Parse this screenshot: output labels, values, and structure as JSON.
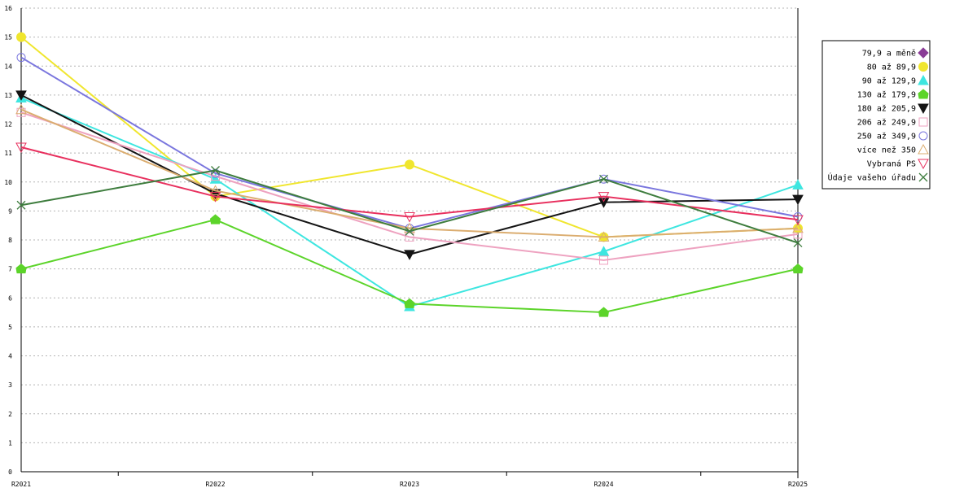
{
  "chart_data": {
    "type": "line",
    "categories": [
      "R2021",
      "R2022",
      "R2023",
      "R2024",
      "R2025"
    ],
    "ylim": [
      0,
      16
    ],
    "yticks": [
      0,
      1,
      2,
      3,
      4,
      5,
      6,
      7,
      8,
      9,
      10,
      11,
      12,
      13,
      14,
      15,
      16
    ],
    "grid": true,
    "legend_position": "right",
    "series": [
      {
        "name": "79,9 a měně",
        "color": "#8a3c96",
        "marker": "diamond-filled-icon",
        "values": [
          null,
          null,
          null,
          null,
          null
        ]
      },
      {
        "name": "80 až 89,9",
        "color": "#f0e62e",
        "marker": "circle-filled-icon",
        "values": [
          15.0,
          9.5,
          10.6,
          8.1,
          8.4
        ]
      },
      {
        "name": "90 až 129,9",
        "color": "#3ee6e0",
        "marker": "triangle-up-filled-icon",
        "values": [
          12.9,
          10.1,
          5.7,
          7.6,
          9.9
        ]
      },
      {
        "name": "130 až 179,9",
        "color": "#5cd42a",
        "marker": "pentagon-filled-icon",
        "values": [
          7.0,
          8.7,
          5.8,
          5.5,
          7.0
        ]
      },
      {
        "name": "180 až 205,9",
        "color": "#141414",
        "marker": "triangle-down-filled-icon",
        "values": [
          13.0,
          9.6,
          7.5,
          9.3,
          9.4
        ]
      },
      {
        "name": "206 až 249,9",
        "color": "#eea2c0",
        "marker": "square-open-icon",
        "values": [
          12.4,
          10.2,
          8.1,
          7.3,
          8.2
        ]
      },
      {
        "name": "250 až 349,9",
        "color": "#7a76de",
        "marker": "circle-open-icon",
        "values": [
          14.3,
          10.3,
          8.4,
          10.1,
          8.8
        ]
      },
      {
        "name": "více než 350",
        "color": "#dbad70",
        "marker": "triangle-up-open-icon",
        "values": [
          12.5,
          9.7,
          8.4,
          8.1,
          8.4
        ]
      },
      {
        "name": "Vybraná PS",
        "color": "#e8305e",
        "marker": "triangle-down-open-icon",
        "values": [
          11.2,
          9.5,
          8.8,
          9.5,
          8.7
        ]
      },
      {
        "name": "Údaje vašeho úřadu",
        "color": "#3e7d3e",
        "marker": "x-cross-icon",
        "values": [
          9.2,
          10.4,
          8.3,
          10.1,
          7.9
        ]
      }
    ]
  }
}
